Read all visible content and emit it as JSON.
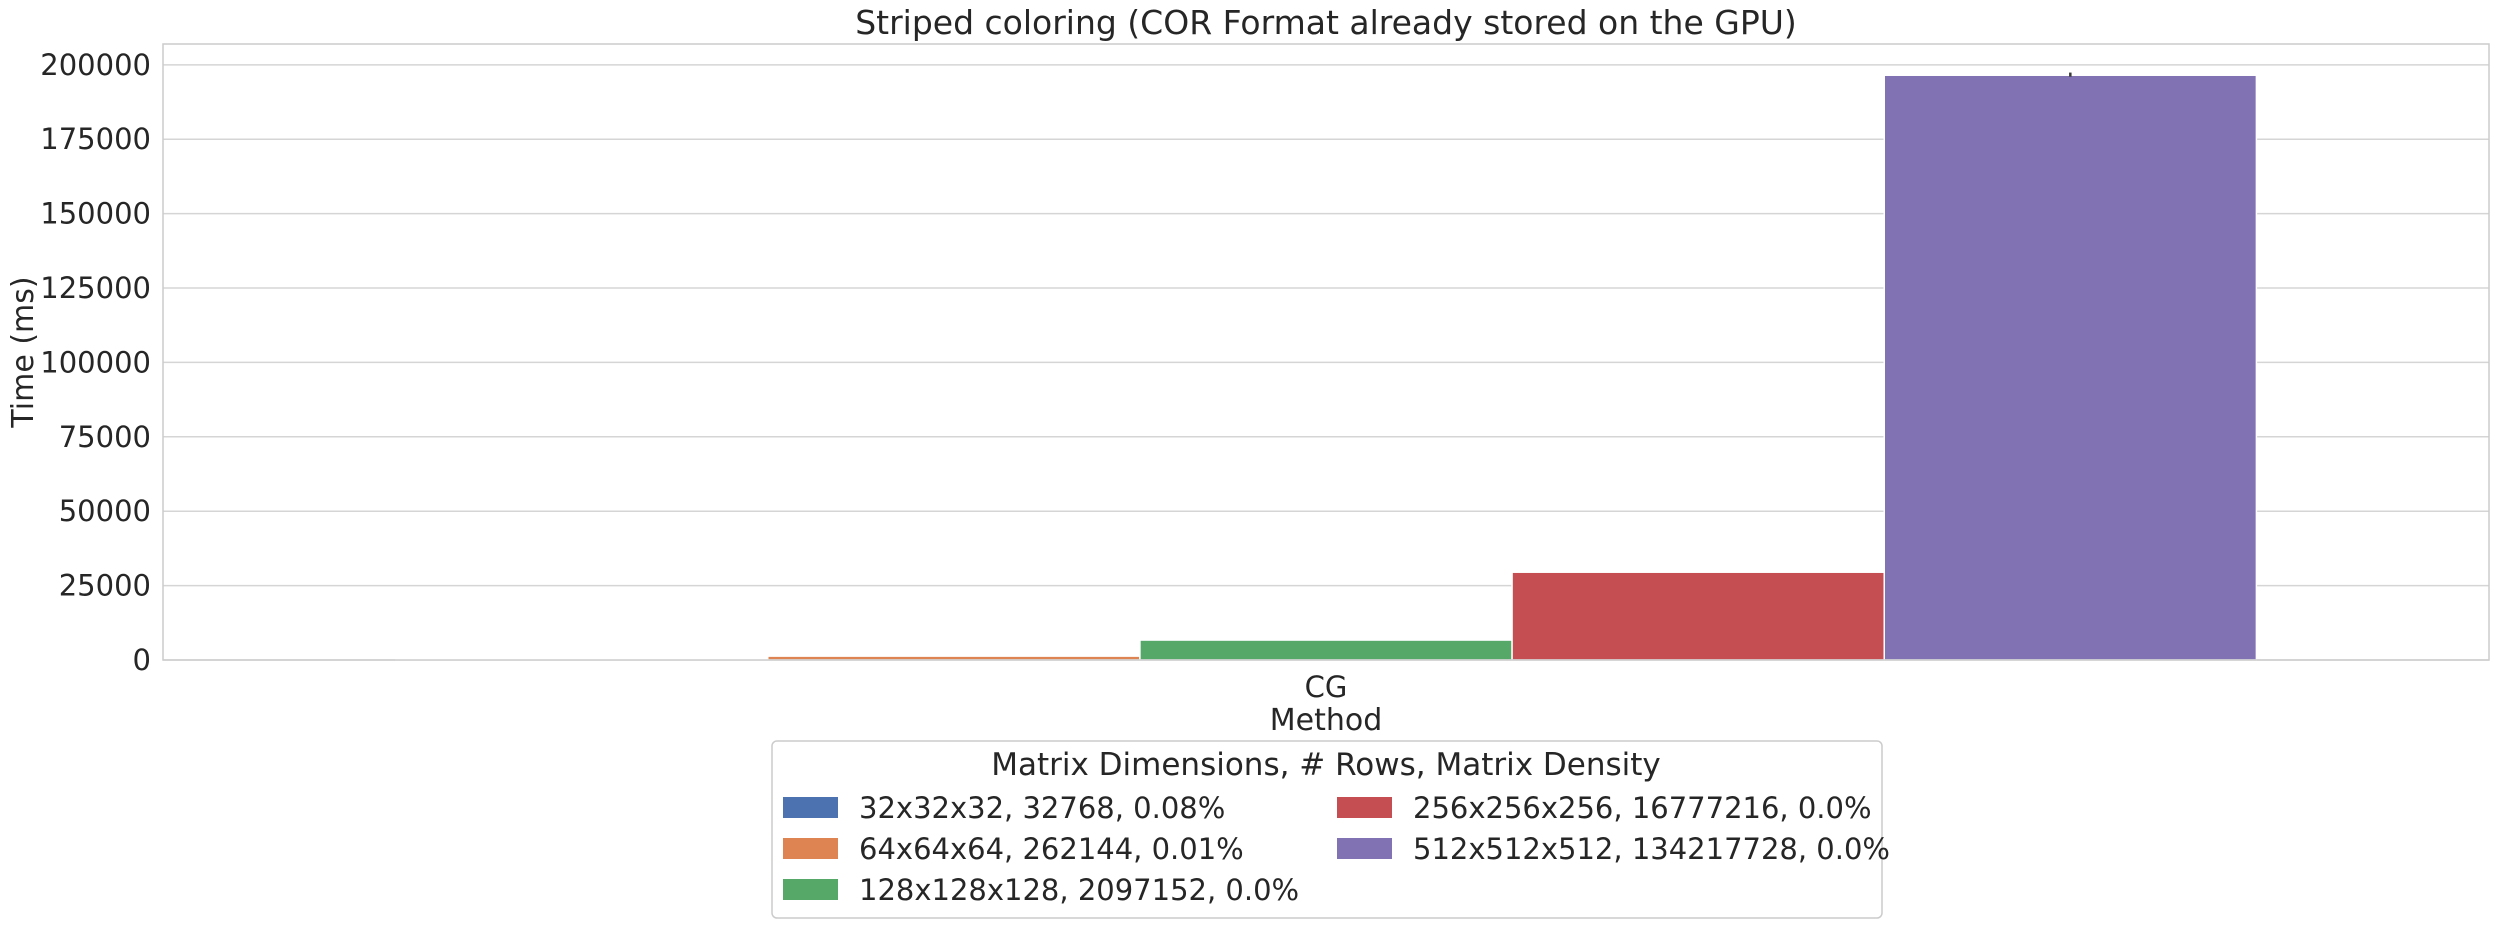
{
  "chart_data": {
    "type": "bar",
    "title": "Striped coloring (COR Format already stored on the GPU)",
    "xlabel": "Method",
    "ylabel": "Time (ms)",
    "categories": [
      "CG"
    ],
    "ylim": [
      0,
      207000
    ],
    "yticks": [
      0,
      25000,
      50000,
      75000,
      100000,
      125000,
      150000,
      175000,
      200000
    ],
    "grid": true,
    "legend": {
      "title": "Matrix Dimensions, # Rows, Matrix Density",
      "placement": "below plot, centered, 2 columns"
    },
    "series": [
      {
        "name": "32x32x32, 32768, 0.08%",
        "color": "#4c72b0",
        "values": [
          120
        ]
      },
      {
        "name": "64x64x64, 262144, 0.01%",
        "color": "#dd8452",
        "values": [
          1300
        ]
      },
      {
        "name": "128x128x128, 2097152, 0.0%",
        "color": "#55a868",
        "values": [
          6700
        ]
      },
      {
        "name": "256x256x256, 16777216, 0.0%",
        "color": "#c44e52",
        "values": [
          29500
        ]
      },
      {
        "name": "512x512x512, 134217728, 0.0%",
        "color": "#8172b3",
        "values": [
          196500
        ],
        "error": [
          196000,
          197400
        ]
      }
    ]
  }
}
